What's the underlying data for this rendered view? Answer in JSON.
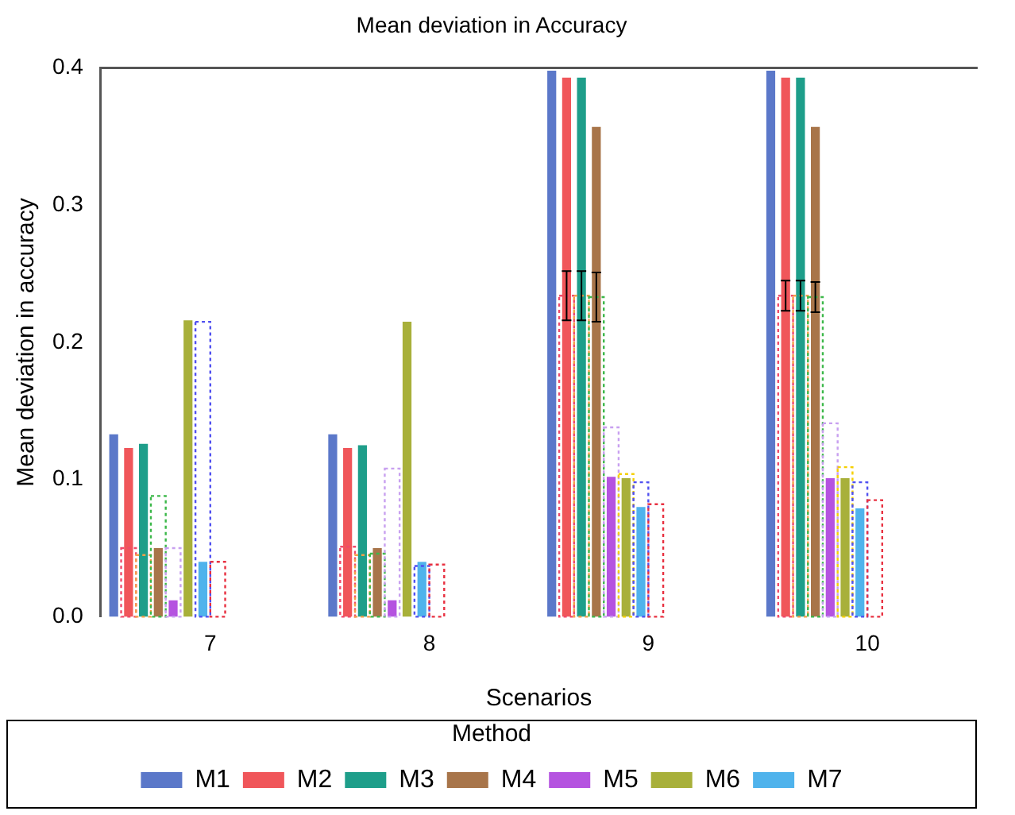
{
  "chart_data": {
    "type": "bar",
    "title": "Mean deviation in Accuracy",
    "xlabel": "Scenarios",
    "ylabel": "Mean deviation in accuracy",
    "legend_title": "Method",
    "legend": "bottom",
    "grid": false,
    "categories": [
      "7",
      "8",
      "9",
      "10"
    ],
    "ylim": [
      0,
      0.4
    ],
    "yticks": [
      {
        "value": 0,
        "label": "0.0"
      },
      0.1,
      0.2,
      0.3,
      0.4
    ],
    "series": [
      {
        "name": "M1",
        "color": "#5b78c9",
        "values": [
          0.133,
          0.133,
          0.398,
          0.398
        ]
      },
      {
        "name": "M2",
        "color": "#f0565a",
        "values": [
          0.123,
          0.123,
          0.393,
          0.393
        ]
      },
      {
        "name": "M3",
        "color": "#1e9e8a",
        "values": [
          0.126,
          0.125,
          0.393,
          0.393
        ]
      },
      {
        "name": "M4",
        "color": "#a8754a",
        "values": [
          0.05,
          0.05,
          0.357,
          0.357
        ]
      },
      {
        "name": "M5",
        "color": "#b553e0",
        "values": [
          0.012,
          0.012,
          0.102,
          0.101
        ]
      },
      {
        "name": "M6",
        "color": "#a8b03a",
        "values": [
          0.216,
          0.215,
          0.101,
          0.101
        ]
      },
      {
        "name": "M7",
        "color": "#4fb3ec",
        "values": [
          0.04,
          0.04,
          0.08,
          0.079
        ]
      },
      {
        "color": "#f04a6a",
        "line_style": "dotted",
        "values": [
          0.05,
          0.051,
          0.234,
          0.234
        ],
        "errors": [
          null,
          null,
          0.018,
          0.011
        ]
      },
      {
        "color": "#f5a04a",
        "line_style": "dotted",
        "values": [
          0.045,
          0.045,
          0.234,
          0.234
        ],
        "errors": [
          null,
          null,
          0.018,
          0.011
        ]
      },
      {
        "color": "#3cb84a",
        "line_style": "dotted",
        "values": [
          0.088,
          0.046,
          0.233,
          0.233
        ],
        "errors": [
          null,
          null,
          0.018,
          0.011
        ]
      },
      {
        "color": "#c8a0f0",
        "line_style": "dotted",
        "values": [
          0.05,
          0.108,
          0.138,
          0.141
        ]
      },
      {
        "color": "#f5d000",
        "line_style": "dotted",
        "values": [
          null,
          null,
          0.104,
          0.109
        ]
      },
      {
        "color": "#5050f0",
        "line_style": "dotted",
        "values": [
          0.215,
          0.037,
          0.098,
          0.098
        ]
      },
      {
        "color": "#e83040",
        "line_style": "dotted",
        "values": [
          0.04,
          0.038,
          0.082,
          0.085
        ]
      }
    ]
  }
}
